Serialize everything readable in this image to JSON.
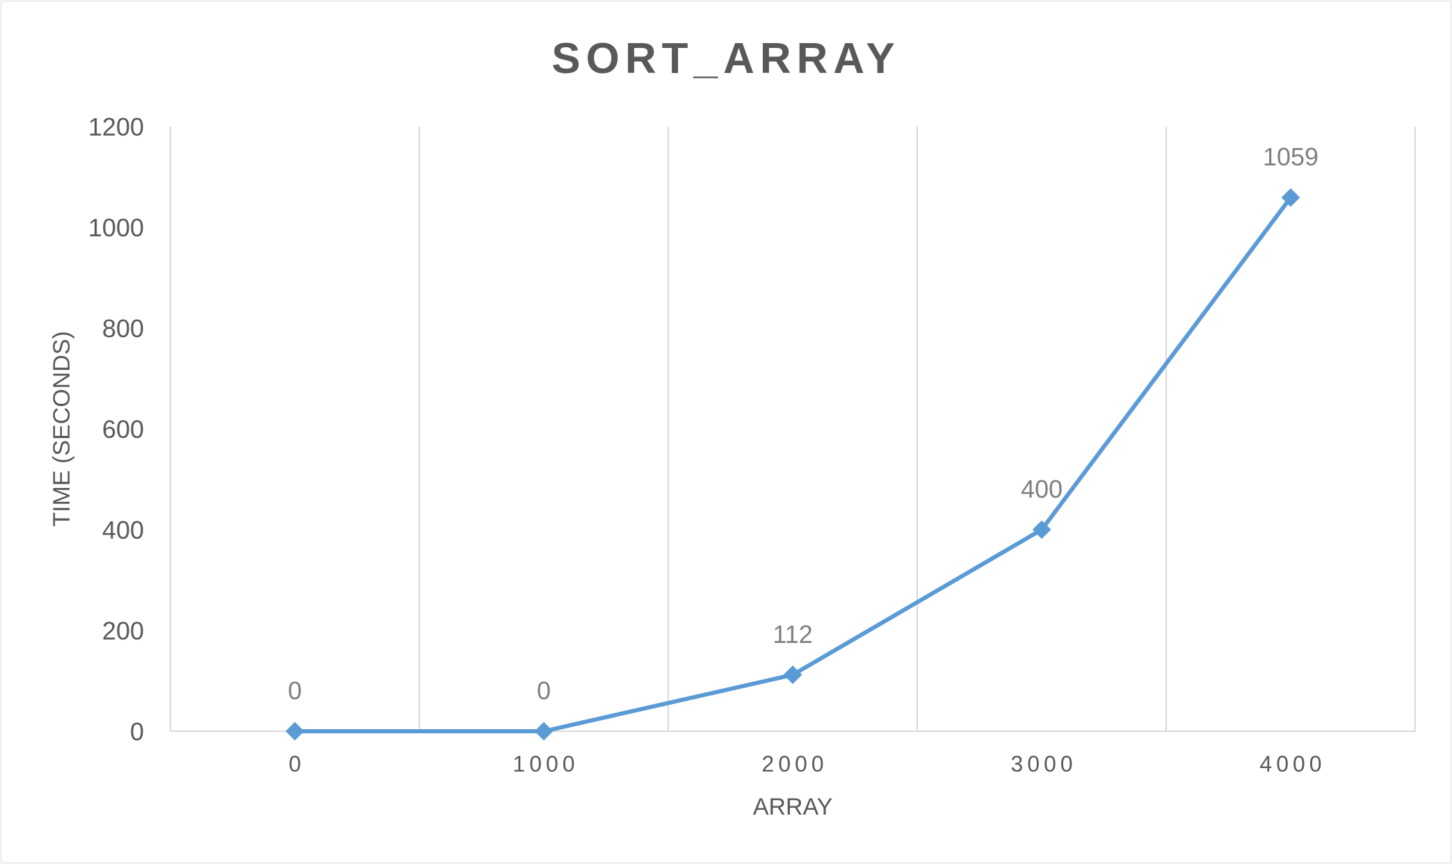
{
  "chart_data": {
    "type": "scatter",
    "title": "SORT_ARRAY",
    "xlabel": "ARRAY",
    "ylabel": "TIME (SECONDS)",
    "x": [
      0,
      1000,
      2000,
      3000,
      4000
    ],
    "y": [
      0,
      0,
      112,
      400,
      1059
    ],
    "data_labels": [
      "0",
      "0",
      "112",
      "400",
      "1059"
    ],
    "x_ticks": [
      "0",
      "1000",
      "2000",
      "3000",
      "4000"
    ],
    "y_ticks": [
      "0",
      "200",
      "400",
      "600",
      "800",
      "1000",
      "1200"
    ],
    "xlim": [
      -500,
      4500
    ],
    "ylim": [
      0,
      1200
    ],
    "grid": "vertical",
    "series_color": "#5b9bd5",
    "grid_color": "#d9d9d9"
  }
}
